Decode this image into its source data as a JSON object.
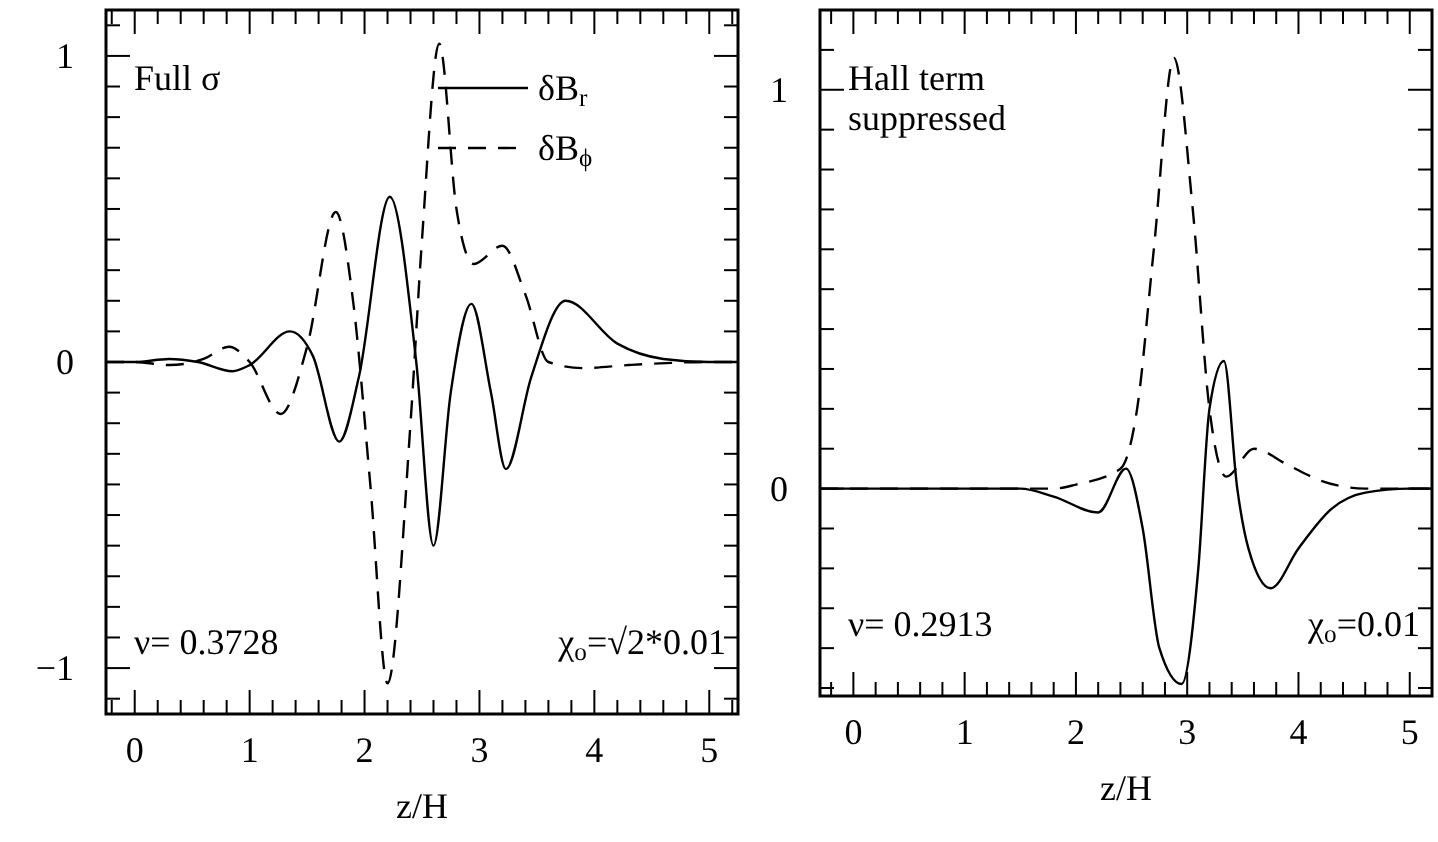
{
  "chart_data": [
    {
      "type": "line",
      "xlabel": "z/H",
      "xlim": [
        -0.25,
        5.25
      ],
      "ylim": [
        -1.15,
        1.15
      ],
      "legend": "top right",
      "grid": false,
      "xticks": [
        {
          "value": -0.2,
          "label": null
        },
        0,
        {
          "value": 0.2,
          "label": null
        },
        {
          "value": 0.4,
          "label": null
        },
        {
          "value": 0.6,
          "label": null
        },
        {
          "value": 0.8,
          "label": null
        },
        1,
        {
          "value": 1.2,
          "label": null
        },
        {
          "value": 1.4,
          "label": null
        },
        {
          "value": 1.6,
          "label": null
        },
        {
          "value": 1.8,
          "label": null
        },
        2,
        {
          "value": 2.2,
          "label": null
        },
        {
          "value": 2.4,
          "label": null
        },
        {
          "value": 2.6,
          "label": null
        },
        {
          "value": 2.8,
          "label": null
        },
        3,
        {
          "value": 3.2,
          "label": null
        },
        {
          "value": 3.4,
          "label": null
        },
        {
          "value": 3.6,
          "label": null
        },
        {
          "value": 3.8,
          "label": null
        },
        4,
        {
          "value": 4.2,
          "label": null
        },
        {
          "value": 4.4,
          "label": null
        },
        {
          "value": 4.6,
          "label": null
        },
        {
          "value": 4.8,
          "label": null
        },
        5,
        {
          "value": 5.2,
          "label": null
        }
      ],
      "yticks": [
        {
          "value": -1.1,
          "label": null
        },
        {
          "value": -1,
          "label": "−1"
        },
        {
          "value": -0.9,
          "label": null
        },
        {
          "value": -0.8,
          "label": null
        },
        {
          "value": -0.7,
          "label": null
        },
        {
          "value": -0.6,
          "label": null
        },
        {
          "value": -0.5,
          "label": null
        },
        {
          "value": -0.4,
          "label": null
        },
        {
          "value": -0.3,
          "label": null
        },
        {
          "value": -0.2,
          "label": null
        },
        {
          "value": -0.1,
          "label": null
        },
        {
          "value": 0,
          "label": "0"
        },
        {
          "value": 0.1,
          "label": null
        },
        {
          "value": 0.2,
          "label": null
        },
        {
          "value": 0.3,
          "label": null
        },
        {
          "value": 0.4,
          "label": null
        },
        {
          "value": 0.5,
          "label": null
        },
        {
          "value": 0.6,
          "label": null
        },
        {
          "value": 0.7,
          "label": null
        },
        {
          "value": 0.8,
          "label": null
        },
        {
          "value": 0.9,
          "label": null
        },
        {
          "value": 1,
          "label": "1"
        },
        {
          "value": 1.1,
          "label": null
        }
      ],
      "annotations": [
        "Full σ",
        "ν= 0.3728",
        "χ$_{o}$=√2*0.01"
      ],
      "series": [
        {
          "name": "δB$_{r}$",
          "color": "#000000",
          "line_style": "solid",
          "x": [
            -0.25,
            0,
            0.3,
            0.55,
            0.85,
            1.0,
            1.35,
            1.55,
            1.78,
            1.95,
            2.22,
            2.45,
            2.6,
            2.75,
            2.93,
            3.1,
            3.23,
            3.45,
            3.75,
            4.2,
            4.6,
            5.0,
            5.25
          ],
          "values": [
            0,
            0,
            0.01,
            0,
            -0.03,
            -0.01,
            0.1,
            0.02,
            -0.26,
            -0.05,
            0.54,
            0,
            -0.6,
            -0.1,
            0.19,
            -0.1,
            -0.35,
            -0.05,
            0.2,
            0.06,
            0.01,
            0,
            0
          ]
        },
        {
          "name": "δB$_{ϕ}$",
          "color": "#000000",
          "line_style": "dashed",
          "x": [
            -0.25,
            0,
            0.3,
            0.6,
            0.82,
            1.0,
            1.27,
            1.5,
            1.75,
            1.9,
            2.05,
            2.2,
            2.4,
            2.5,
            2.65,
            2.8,
            2.95,
            3.2,
            3.4,
            3.6,
            3.9,
            4.3,
            5.0,
            5.25
          ],
          "values": [
            0,
            0,
            -0.01,
            0.01,
            0.05,
            0,
            -0.17,
            0.05,
            0.49,
            0.2,
            -0.4,
            -1.05,
            -0.2,
            0.4,
            1.04,
            0.5,
            0.32,
            0.38,
            0.22,
            0,
            -0.02,
            -0.01,
            0,
            0
          ]
        }
      ]
    },
    {
      "type": "line",
      "xlabel": "z/H",
      "xlim": [
        -0.3,
        5.2
      ],
      "ylim": [
        -0.52,
        1.2
      ],
      "grid": false,
      "xticks": [
        {
          "value": -0.2,
          "label": null
        },
        0,
        {
          "value": 0.2,
          "label": null
        },
        {
          "value": 0.4,
          "label": null
        },
        {
          "value": 0.6,
          "label": null
        },
        {
          "value": 0.8,
          "label": null
        },
        1,
        {
          "value": 1.2,
          "label": null
        },
        {
          "value": 1.4,
          "label": null
        },
        {
          "value": 1.6,
          "label": null
        },
        {
          "value": 1.8,
          "label": null
        },
        2,
        {
          "value": 2.2,
          "label": null
        },
        {
          "value": 2.4,
          "label": null
        },
        {
          "value": 2.6,
          "label": null
        },
        {
          "value": 2.8,
          "label": null
        },
        3,
        {
          "value": 3.2,
          "label": null
        },
        {
          "value": 3.4,
          "label": null
        },
        {
          "value": 3.6,
          "label": null
        },
        {
          "value": 3.8,
          "label": null
        },
        4,
        {
          "value": 4.2,
          "label": null
        },
        {
          "value": 4.4,
          "label": null
        },
        {
          "value": 4.6,
          "label": null
        },
        {
          "value": 4.8,
          "label": null
        },
        5
      ],
      "yticks": [
        {
          "value": -0.5,
          "label": null
        },
        {
          "value": -0.4,
          "label": null
        },
        {
          "value": -0.3,
          "label": null
        },
        {
          "value": -0.2,
          "label": null
        },
        {
          "value": -0.1,
          "label": null
        },
        {
          "value": 0,
          "label": "0"
        },
        {
          "value": 0.1,
          "label": null
        },
        {
          "value": 0.2,
          "label": null
        },
        {
          "value": 0.3,
          "label": null
        },
        {
          "value": 0.4,
          "label": null
        },
        {
          "value": 0.5,
          "label": null
        },
        {
          "value": 0.6,
          "label": null
        },
        {
          "value": 0.7,
          "label": null
        },
        {
          "value": 0.8,
          "label": null
        },
        {
          "value": 0.9,
          "label": null
        },
        {
          "value": 1,
          "label": "1"
        },
        {
          "value": 1.1,
          "label": null
        }
      ],
      "annotations": [
        "Hall term suppressed",
        "ν= 0.2913",
        "χ$_{o}$=0.01"
      ],
      "series": [
        {
          "color": "#000000",
          "line_style": "solid",
          "x": [
            -0.3,
            0,
            1.0,
            1.5,
            1.8,
            2.2,
            2.45,
            2.6,
            2.75,
            2.95,
            3.1,
            3.2,
            3.33,
            3.45,
            3.55,
            3.75,
            4.0,
            4.3,
            4.6,
            5.0,
            5.2
          ],
          "values": [
            0,
            0,
            0,
            0,
            -0.02,
            -0.06,
            0.05,
            -0.1,
            -0.4,
            -0.49,
            -0.2,
            0.2,
            0.32,
            0,
            -0.15,
            -0.25,
            -0.15,
            -0.05,
            -0.01,
            0,
            0
          ]
        },
        {
          "color": "#000000",
          "line_style": "dashed",
          "x": [
            -0.3,
            0,
            1.0,
            1.8,
            2.0,
            2.4,
            2.55,
            2.7,
            2.88,
            3.05,
            3.2,
            3.35,
            3.6,
            3.9,
            4.2,
            4.6,
            5.0,
            5.2
          ],
          "values": [
            0,
            0,
            0,
            0,
            0.01,
            0.05,
            0.2,
            0.6,
            1.08,
            0.7,
            0.2,
            0.03,
            0.1,
            0.06,
            0.02,
            0,
            0,
            0
          ]
        }
      ]
    }
  ]
}
